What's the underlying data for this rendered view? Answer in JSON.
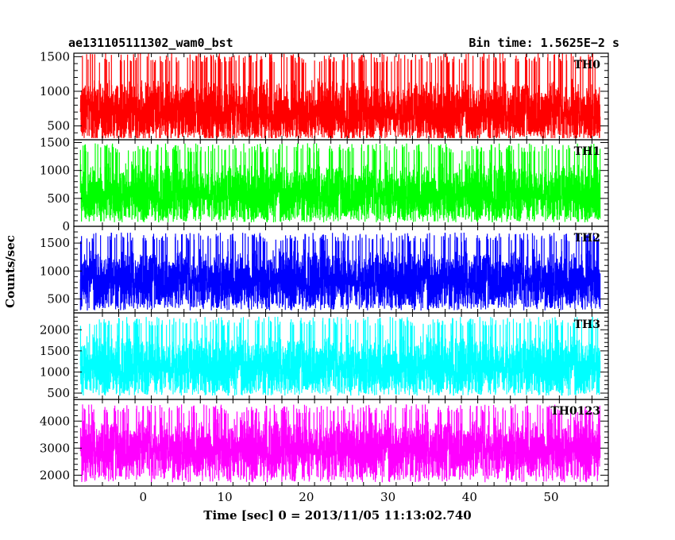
{
  "header": {
    "left_title": "ae131105111302_wam0_bst",
    "right_title": "Bin time: 1.5625E−2 s"
  },
  "chart_data": {
    "type": "line",
    "xlabel": "Time [sec] 0 = 2013/11/05 11:13:02.740",
    "ylabel": "Counts/sec",
    "xlim": [
      -8.5,
      57
    ],
    "x_ticks": [
      0,
      10,
      20,
      30,
      40,
      50
    ],
    "x_range_data": [
      -7.7,
      56.0
    ],
    "bin_time_s": 0.015625,
    "panels": [
      {
        "name": "TH0",
        "color": "#ff0000",
        "ylim": [
          300,
          1550
        ],
        "y_ticks": [
          500,
          1000,
          1500
        ],
        "baseline": 700,
        "min": 330,
        "max": 1550
      },
      {
        "name": "TH1",
        "color": "#00ff00",
        "ylim": [
          0,
          1550
        ],
        "y_ticks": [
          0,
          500,
          1000,
          1500
        ],
        "baseline": 600,
        "min": 80,
        "max": 1480
      },
      {
        "name": "TH2",
        "color": "#0000ff",
        "ylim": [
          250,
          1800
        ],
        "y_ticks": [
          500,
          1000,
          1500
        ],
        "baseline": 850,
        "min": 300,
        "max": 1680
      },
      {
        "name": "TH3",
        "color": "#00ffff",
        "ylim": [
          350,
          2400
        ],
        "y_ticks": [
          500,
          1000,
          1500,
          2000
        ],
        "baseline": 1150,
        "min": 450,
        "max": 2300
      },
      {
        "name": "TH0123",
        "color": "#ff00ff",
        "ylim": [
          1600,
          4800
        ],
        "y_ticks": [
          2000,
          3000,
          4000
        ],
        "baseline": 3000,
        "min": 1750,
        "max": 4600
      }
    ]
  }
}
